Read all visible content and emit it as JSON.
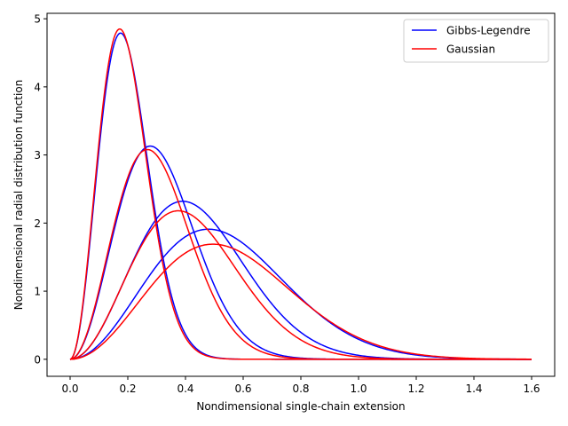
{
  "chart_data": {
    "type": "line",
    "title": "",
    "xlabel": "Nondimensional single-chain extension",
    "ylabel": "Nondimensional radial distribution function",
    "xlim": [
      -0.08,
      1.68
    ],
    "ylim": [
      -0.25,
      5.08
    ],
    "xticks": [
      0.0,
      0.2,
      0.4,
      0.6,
      0.8,
      1.0,
      1.2,
      1.4,
      1.6
    ],
    "xtick_labels": [
      "0.0",
      "0.2",
      "0.4",
      "0.6",
      "0.8",
      "1.0",
      "1.2",
      "1.4",
      "1.6"
    ],
    "yticks": [
      0,
      1,
      2,
      3,
      4,
      5
    ],
    "ytick_labels": [
      "0",
      "1",
      "2",
      "3",
      "4",
      "5"
    ],
    "grid": false,
    "legend": {
      "position": "top-right",
      "entries": [
        {
          "label": "Gibbs-Legendre",
          "color": "#0000ff"
        },
        {
          "label": "Gaussian",
          "color": "#ff0000"
        }
      ]
    },
    "series": [
      {
        "group": "Gibbs-Legendre",
        "color": "#0000ff",
        "peak_x": 0.175,
        "peak_y": 4.79
      },
      {
        "group": "Gibbs-Legendre",
        "color": "#0000ff",
        "peak_x": 0.278,
        "peak_y": 3.13
      },
      {
        "group": "Gibbs-Legendre",
        "color": "#0000ff",
        "peak_x": 0.39,
        "peak_y": 2.32
      },
      {
        "group": "Gibbs-Legendre",
        "color": "#0000ff",
        "peak_x": 0.48,
        "peak_y": 1.91
      },
      {
        "group": "Gaussian",
        "color": "#ff0000",
        "peak_x": 0.172,
        "peak_y": 4.85
      },
      {
        "group": "Gaussian",
        "color": "#ff0000",
        "peak_x": 0.268,
        "peak_y": 3.08
      },
      {
        "group": "Gaussian",
        "color": "#ff0000",
        "peak_x": 0.375,
        "peak_y": 2.18
      },
      {
        "group": "Gaussian",
        "color": "#ff0000",
        "peak_x": 0.495,
        "peak_y": 1.69
      }
    ]
  }
}
